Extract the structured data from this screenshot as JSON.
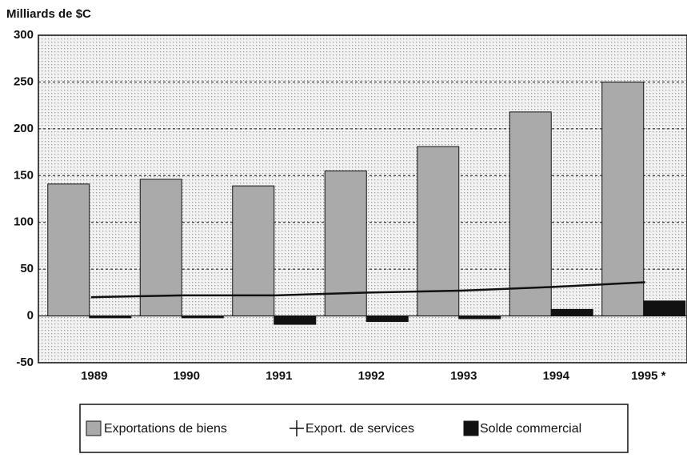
{
  "chart_data": {
    "type": "bar",
    "title": "Milliards de $C",
    "categories": [
      "1989",
      "1990",
      "1991",
      "1992",
      "1993",
      "1994",
      "1995 *"
    ],
    "series": [
      {
        "name": "Exportations de biens",
        "color": "#aaaaaa",
        "mark": "bar",
        "values": [
          141,
          146,
          139,
          155,
          181,
          218,
          250
        ]
      },
      {
        "name": "Export. de services",
        "color": "#111111",
        "mark": "line",
        "values": [
          20,
          22,
          22,
          25,
          27,
          31,
          36
        ]
      },
      {
        "name": "Solde commercial",
        "color": "#111111",
        "mark": "bar",
        "values": [
          -2,
          -2,
          -9,
          -6,
          -3,
          7,
          16
        ]
      }
    ],
    "ylim": [
      -50,
      300
    ],
    "yticks": [
      -50,
      0,
      50,
      100,
      150,
      200,
      250,
      300
    ],
    "grid": true
  }
}
